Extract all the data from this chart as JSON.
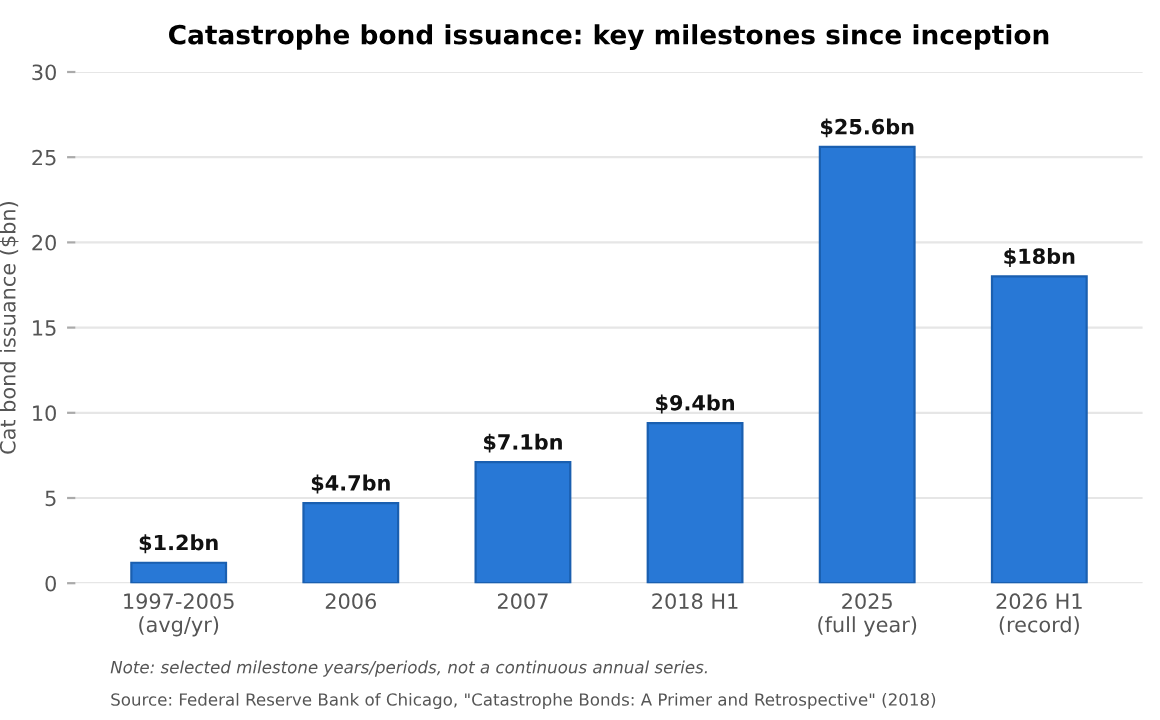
{
  "chart_data": {
    "type": "bar",
    "title": "Catastrophe bond issuance: key milestones since inception",
    "ylabel": "Cat bond issuance ($bn)",
    "categories": [
      "1997-2005\n(avg/yr)",
      "2006",
      "2007",
      "2018 H1",
      "2025\n(full year)",
      "2026 H1\n(record)"
    ],
    "values": [
      1.2,
      4.7,
      7.1,
      9.4,
      25.6,
      18
    ],
    "value_labels": [
      "$1.2bn",
      "$4.7bn",
      "$7.1bn",
      "$9.4bn",
      "$25.6bn",
      "$18bn"
    ],
    "color": "#2878d6",
    "ylim": [
      0,
      30
    ],
    "yticks": [
      0,
      5,
      10,
      15,
      20,
      25,
      30
    ],
    "grid": "y",
    "annotations": [
      "Note: selected milestone years/periods, not a continuous annual series.",
      "Source: Federal Reserve Bank of Chicago, \"Catastrophe Bonds: A Primer and Retrospective\" (2018)"
    ]
  }
}
